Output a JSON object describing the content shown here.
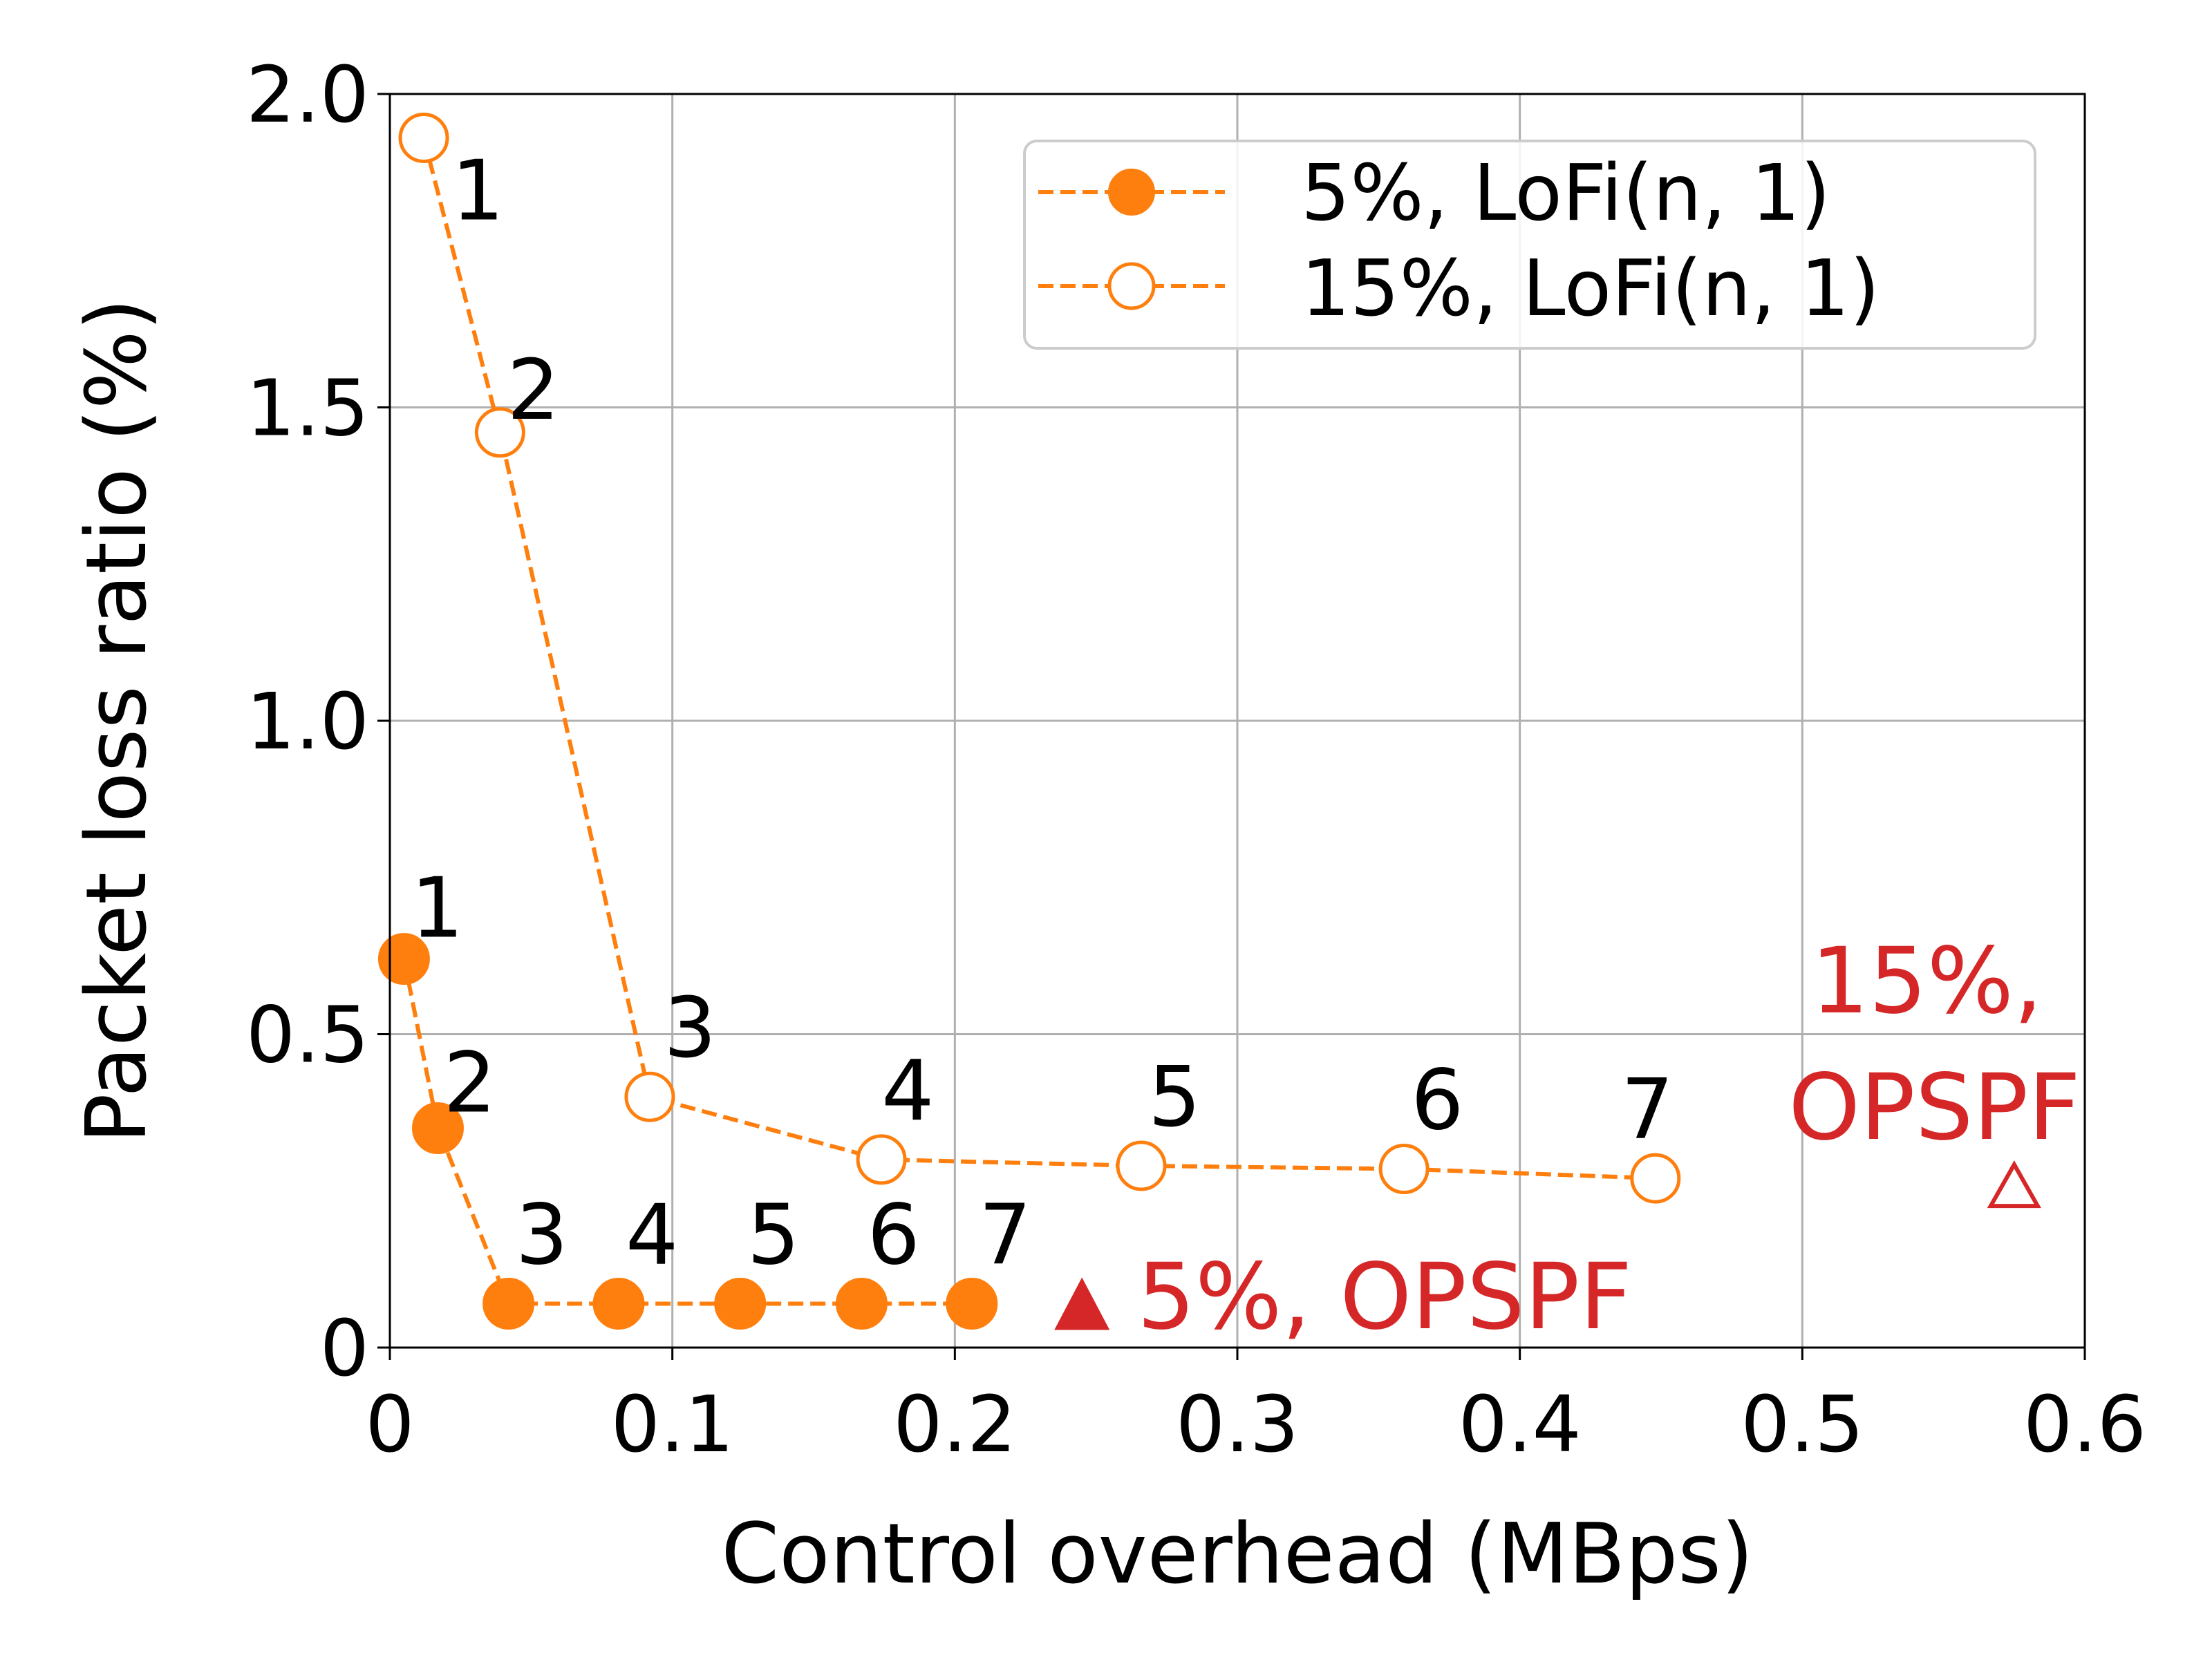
{
  "chart_data": {
    "type": "line",
    "xlabel": "Control overhead (MBps)",
    "ylabel": "Packet loss ratio (%)",
    "xlim": [
      0,
      0.6
    ],
    "ylim": [
      0,
      2.0
    ],
    "xticks": [
      0,
      0.1,
      0.2,
      0.3,
      0.4,
      0.5,
      0.6
    ],
    "xtick_labels": [
      "0",
      "0.1",
      "0.2",
      "0.3",
      "0.4",
      "0.5",
      "0.6"
    ],
    "yticks": [
      0,
      0.5,
      1.0,
      1.5,
      2.0
    ],
    "ytick_labels": [
      "0",
      "0.5",
      "1.0",
      "1.5",
      "2.0"
    ],
    "grid": true,
    "legend_position": "top-right",
    "series": [
      {
        "name": "5%, LoFi(n, 1)",
        "color": "#ff7f0e",
        "marker": "filled-circle",
        "linestyle": "dashed",
        "x": [
          0.005,
          0.017,
          0.042,
          0.081,
          0.124,
          0.167,
          0.206
        ],
        "y": [
          0.62,
          0.35,
          0.07,
          0.07,
          0.07,
          0.07,
          0.07
        ],
        "point_labels": [
          "1",
          "2",
          "3",
          "4",
          "5",
          "6",
          "7"
        ]
      },
      {
        "name": "15%, LoFi(n, 1)",
        "color": "#ff7f0e",
        "marker": "hollow-circle",
        "linestyle": "dashed",
        "x": [
          0.012,
          0.039,
          0.092,
          0.174,
          0.266,
          0.359,
          0.448
        ],
        "y": [
          1.93,
          1.46,
          0.4,
          0.3,
          0.29,
          0.285,
          0.27
        ],
        "point_labels": [
          "1",
          "2",
          "3",
          "4",
          "5",
          "6",
          "7"
        ]
      }
    ],
    "annotations": [
      {
        "id": "opspf-5",
        "text": "5%, OPSPF",
        "marker": "filled-triangle",
        "color": "#d62728",
        "x": 0.245,
        "y": 0.07
      },
      {
        "id": "opspf-15",
        "text_lines": [
          "15%,",
          "OPSPF"
        ],
        "marker": "hollow-triangle",
        "color": "#d62728",
        "x": 0.575,
        "y": 0.27
      }
    ]
  }
}
